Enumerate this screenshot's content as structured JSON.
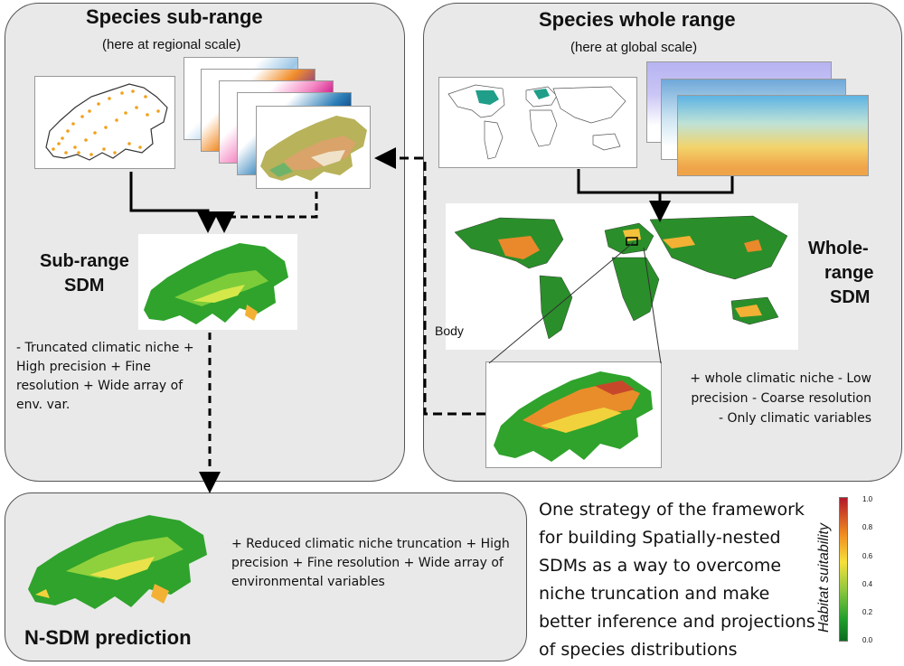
{
  "sub_range": {
    "title": "Species sub-range",
    "subtitle": "(here at regional scale)",
    "sdm_label_line1": "Sub-range",
    "sdm_label_line2": "SDM",
    "description": "- Truncated climatic niche + High precision + Fine resolution + Wide array of env. var."
  },
  "whole_range": {
    "title": "Species whole range",
    "subtitle": "(here at global scale)",
    "sdm_label_line1": "Whole-",
    "sdm_label_line2": "range",
    "sdm_label_line3": "SDM",
    "body_label": "Body",
    "description": "+ whole climatic niche - Low precision - Coarse resolution - Only climatic variables"
  },
  "nsdm": {
    "title": "N-SDM prediction",
    "description": "+ Reduced climatic niche truncation + High precision + Fine resolution + Wide array of environmental variables"
  },
  "caption": "One strategy of the framework for building Spatially-nested SDMs as a way to overcome niche truncation and make better inference and projections of species distributions",
  "legend": {
    "title": "Habitat suitability",
    "ticks": [
      "1.0",
      "0.8",
      "0.6",
      "0.4",
      "0.2",
      "0.0"
    ],
    "colors": [
      "#b2182b",
      "#ef8a1f",
      "#f6e03c",
      "#8cc63f",
      "#1f9e2c",
      "#0b6b1f"
    ]
  }
}
